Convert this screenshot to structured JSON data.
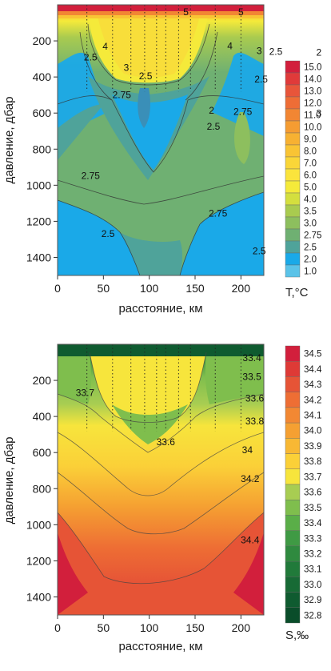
{
  "chart_data": [
    {
      "type": "heatmap",
      "xlabel": "расстояние, км",
      "ylabel": "давление, дбар",
      "xlim": [
        0,
        225
      ],
      "ylim": [
        0,
        1500
      ],
      "y_inverted": true,
      "x_ticks": [
        "0",
        "50",
        "100",
        "150",
        "200"
      ],
      "y_ticks": [
        "200",
        "400",
        "600",
        "800",
        "1000",
        "1200",
        "1400"
      ],
      "station_km": [
        32,
        60,
        80,
        95,
        108,
        118,
        132,
        145,
        172,
        200
      ],
      "colorbar_label": "T,°C",
      "colorbar_levels": [
        "15.0",
        "14.0",
        "13.0",
        "12.0",
        "11.0",
        "10.0",
        "9.0",
        "8.0",
        "7.0",
        "6.0",
        "5.0",
        "4.0",
        "3.5",
        "3.0",
        "2.75",
        "2.5",
        "2.0",
        "1.0"
      ],
      "colorbar_colors": [
        "#d21f3c",
        "#e03a3a",
        "#e8553a",
        "#ee6d36",
        "#f28633",
        "#f59c32",
        "#f7b132",
        "#f9c434",
        "#fad638",
        "#fbe43c",
        "#f5ea3a",
        "#d4df3e",
        "#a9cb4f",
        "#8dbf5e",
        "#6fb072",
        "#4fa39a",
        "#1aa9e8",
        "#5bc3e8"
      ],
      "contour_labels": [
        {
          "text": "5",
          "x": 140,
          "y": 40
        },
        {
          "text": "5",
          "x": 200,
          "y": 40
        },
        {
          "text": "4",
          "x": 52,
          "y": 230
        },
        {
          "text": "4",
          "x": 188,
          "y": 228
        },
        {
          "text": "3",
          "x": 220,
          "y": 255
        },
        {
          "text": "2.5",
          "x": 238,
          "y": 260
        },
        {
          "text": "2",
          "x": 285,
          "y": 265
        },
        {
          "text": "2.5",
          "x": 36,
          "y": 290
        },
        {
          "text": "3",
          "x": 75,
          "y": 348
        },
        {
          "text": "2.5",
          "x": 96,
          "y": 395
        },
        {
          "text": "2.5",
          "x": 222,
          "y": 412
        },
        {
          "text": "2.75",
          "x": 70,
          "y": 500
        },
        {
          "text": "2",
          "x": 168,
          "y": 585
        },
        {
          "text": "2.75",
          "x": 202,
          "y": 592
        },
        {
          "text": "3",
          "x": 285,
          "y": 602
        },
        {
          "text": "2.5",
          "x": 170,
          "y": 675
        },
        {
          "text": "2.75",
          "x": 36,
          "y": 948
        },
        {
          "text": "2.75",
          "x": 175,
          "y": 1155
        },
        {
          "text": "2.5",
          "x": 55,
          "y": 1270
        },
        {
          "text": "2.5",
          "x": 220,
          "y": 1365
        }
      ]
    },
    {
      "type": "heatmap",
      "xlabel": "расстояние, км",
      "ylabel": "давление, дбар",
      "xlim": [
        0,
        225
      ],
      "ylim": [
        0,
        1500
      ],
      "y_inverted": true,
      "x_ticks": [
        "0",
        "50",
        "100",
        "150",
        "200"
      ],
      "y_ticks": [
        "200",
        "400",
        "600",
        "800",
        "1000",
        "1200",
        "1400"
      ],
      "station_km": [
        32,
        60,
        80,
        95,
        108,
        118,
        132,
        145,
        172,
        200
      ],
      "colorbar_label": "S,‰",
      "colorbar_levels": [
        "34.5",
        "34.4",
        "34.3",
        "34.2",
        "34.1",
        "34.0",
        "33.9",
        "33.8",
        "33.7",
        "33.6",
        "33.5",
        "33.4",
        "33.3",
        "33.2",
        "33.1",
        "33.0",
        "32.9",
        "32.8"
      ],
      "colorbar_colors": [
        "#d21f3c",
        "#de3a36",
        "#e65436",
        "#ee6e34",
        "#f28833",
        "#f5a032",
        "#f8b834",
        "#fbd038",
        "#f7e53c",
        "#a8cd52",
        "#7fbe4d",
        "#5aae48",
        "#3f9a44",
        "#2f8a3f",
        "#217a3a",
        "#176a35",
        "#0f5b30",
        "#0a4d2a"
      ],
      "contour_labels": [
        {
          "text": "33.4",
          "x": 212,
          "y": 75
        },
        {
          "text": "33.5",
          "x": 212,
          "y": 180
        },
        {
          "text": "33.6",
          "x": 215,
          "y": 300
        },
        {
          "text": "33.7",
          "x": 30,
          "y": 268
        },
        {
          "text": "33.8",
          "x": 215,
          "y": 425
        },
        {
          "text": "33.6",
          "x": 118,
          "y": 542
        },
        {
          "text": "34",
          "x": 207,
          "y": 585
        },
        {
          "text": "34.2",
          "x": 210,
          "y": 745
        },
        {
          "text": "34.4",
          "x": 210,
          "y": 1085
        }
      ]
    }
  ]
}
